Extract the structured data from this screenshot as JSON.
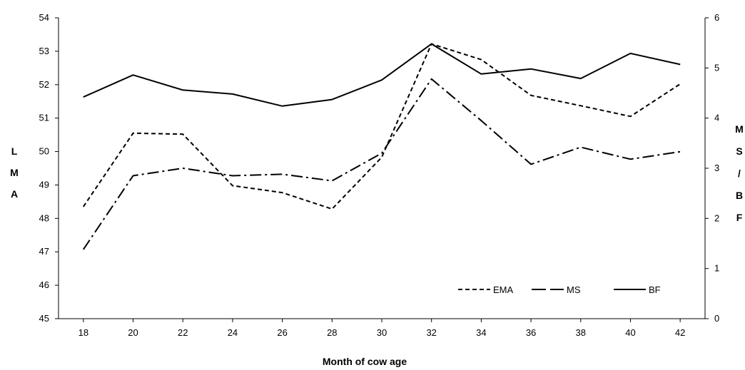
{
  "chart_data": {
    "type": "line",
    "x": [
      18,
      20,
      22,
      24,
      26,
      28,
      30,
      32,
      34,
      36,
      38,
      40,
      42
    ],
    "x_ticks": [
      "18",
      "20",
      "22",
      "24",
      "26",
      "28",
      "30",
      "32",
      "34",
      "36",
      "38",
      "40",
      "42"
    ],
    "xlabel": "Month of cow age",
    "ylabel_left": [
      "L",
      "M",
      "A"
    ],
    "ylabel_right": [
      "M",
      "S",
      "/",
      "B",
      "F"
    ],
    "ylim_left": [
      45,
      54
    ],
    "y_ticks_left": [
      "45",
      "46",
      "47",
      "48",
      "49",
      "50",
      "51",
      "52",
      "53",
      "54"
    ],
    "ylim_right": [
      0,
      6
    ],
    "y_ticks_right": [
      "0",
      "1",
      "2",
      "3",
      "4",
      "5",
      "6"
    ],
    "grid": false,
    "legend_position": "bottom-right",
    "series": [
      {
        "name": "EMA",
        "axis": "left",
        "style": "dashed",
        "values": [
          48.35,
          50.55,
          50.52,
          48.98,
          48.77,
          48.28,
          49.83,
          53.22,
          52.75,
          51.68,
          51.37,
          51.05,
          52.02
        ]
      },
      {
        "name": "MS",
        "axis": "right",
        "style": "dash-dot",
        "values": [
          1.38,
          2.85,
          3.0,
          2.85,
          2.88,
          2.75,
          3.3,
          4.78,
          3.95,
          3.08,
          3.42,
          3.18,
          3.33
        ]
      },
      {
        "name": "BF",
        "axis": "right",
        "style": "solid",
        "values": [
          4.42,
          4.86,
          4.56,
          4.48,
          4.24,
          4.37,
          4.76,
          5.48,
          4.88,
          4.98,
          4.79,
          5.29,
          5.07
        ]
      }
    ],
    "colors": {
      "line": "#000000",
      "axis": "#000000"
    }
  }
}
